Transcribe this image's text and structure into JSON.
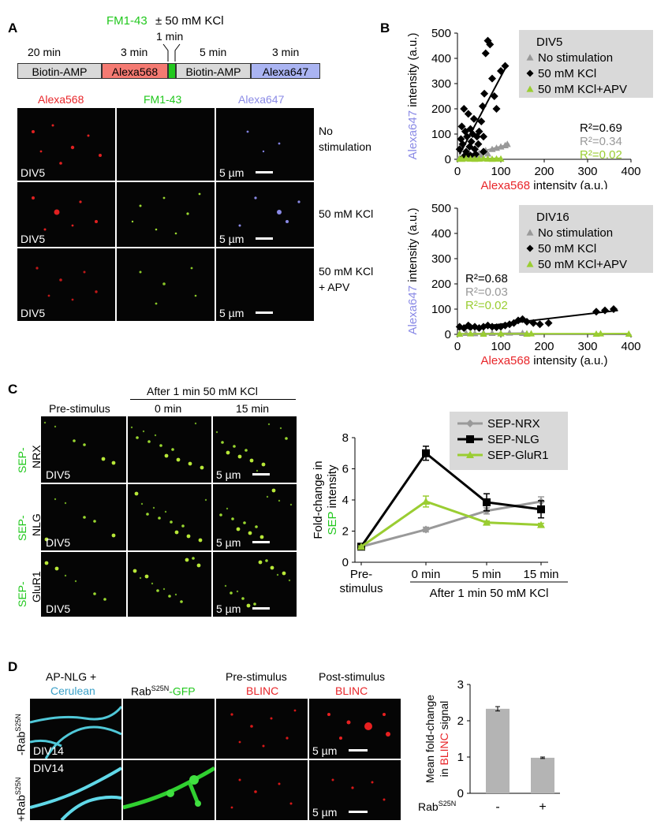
{
  "colors": {
    "red": "#e8262a",
    "green": "#22c81e",
    "blue": "#8a8ae6",
    "cyan": "#3aa0c8",
    "grey": "#999999",
    "black": "#000000",
    "lime": "#9acd32",
    "bar": "#b4b4b4",
    "legendbg": "#d9d9d9"
  },
  "panelA": {
    "letter": "A",
    "fm143": "FM1-43",
    "kcl_label": "± 50 mM KCl",
    "one_min": "1 min",
    "durations": [
      "20 min",
      "3 min",
      "5 min",
      "3 min"
    ],
    "steps": [
      "Biotin-AMP",
      "Alexa568",
      "Biotin-AMP",
      "Alexa647"
    ],
    "col_headers": [
      "Alexa568",
      "FM1-43",
      "Alexa647"
    ],
    "row_labels": [
      [
        "No",
        "stimulation"
      ],
      [
        "50 mM KCl"
      ],
      [
        "50 mM KCl",
        "+ APV"
      ]
    ],
    "div_label": "DIV5",
    "scale_label": "5 µm"
  },
  "panelB": {
    "letter": "B"
  },
  "panelC": {
    "letter": "C",
    "after_header": "After 1 min 50 mM KCl",
    "col_headers": [
      "Pre-stimulus",
      "0 min",
      "15 min"
    ],
    "row_prefix": "SEP-",
    "row_suffixes": [
      "NRX",
      "NLG",
      "GluR1"
    ],
    "div_label": "DIV5",
    "scale_label": "5 µm"
  },
  "panelD": {
    "letter": "D",
    "col1_a": "AP-NLG +",
    "col1_b": "Cerulean",
    "col2_a": "Rab",
    "col2_sup": "S25N",
    "col2_b": "-GFP",
    "col3_a": "Pre-stimulus",
    "col3_b": "BLINC",
    "col4_a": "Post-stimulus",
    "col4_b": "BLINC",
    "row_labels": [
      "-Rab",
      "+Rab"
    ],
    "row_sup": "S25N",
    "div_label": "DIV14",
    "scale_label": "5 µm"
  },
  "chart_data": [
    {
      "id": "B-top",
      "type": "scatter",
      "title": "",
      "xlabel_colored": "Alexa568",
      "xlabel_rest": " intensity (a.u.)",
      "ylabel_colored": "Alexa647",
      "ylabel_rest": " intensity (a.u.)",
      "xlim": [
        0,
        400
      ],
      "ylim": [
        0,
        500
      ],
      "xticks": [
        "0",
        "100",
        "200",
        "300",
        "400"
      ],
      "yticks": [
        "0",
        "100",
        "200",
        "300",
        "400",
        "500"
      ],
      "legend_title": "DIV5",
      "series": [
        {
          "name": "No stimulation",
          "marker": "triangle",
          "color": "grey",
          "points": [
            [
              5,
              5
            ],
            [
              10,
              8
            ],
            [
              15,
              3
            ],
            [
              20,
              12
            ],
            [
              25,
              10
            ],
            [
              30,
              6
            ],
            [
              35,
              15
            ],
            [
              40,
              20
            ],
            [
              45,
              8
            ],
            [
              50,
              25
            ],
            [
              55,
              18
            ],
            [
              60,
              30
            ],
            [
              65,
              35
            ],
            [
              70,
              22
            ],
            [
              80,
              40
            ],
            [
              90,
              45
            ],
            [
              100,
              50
            ],
            [
              110,
              55
            ],
            [
              115,
              60
            ]
          ],
          "fit": [
            [
              0,
              5
            ],
            [
              120,
              60
            ]
          ],
          "r2": "R²=0.34"
        },
        {
          "name": "50 mM KCl",
          "marker": "diamond",
          "color": "black",
          "points": [
            [
              5,
              40
            ],
            [
              8,
              80
            ],
            [
              10,
              130
            ],
            [
              12,
              60
            ],
            [
              15,
              200
            ],
            [
              18,
              110
            ],
            [
              20,
              30
            ],
            [
              22,
              90
            ],
            [
              25,
              180
            ],
            [
              28,
              50
            ],
            [
              30,
              120
            ],
            [
              32,
              70
            ],
            [
              35,
              100
            ],
            [
              38,
              160
            ],
            [
              40,
              40
            ],
            [
              42,
              20
            ],
            [
              45,
              90
            ],
            [
              48,
              60
            ],
            [
              50,
              110
            ],
            [
              55,
              150
            ],
            [
              58,
              210
            ],
            [
              60,
              90
            ],
            [
              62,
              260
            ],
            [
              65,
              420
            ],
            [
              70,
              470
            ],
            [
              75,
              455
            ],
            [
              80,
              320
            ],
            [
              85,
              250
            ],
            [
              90,
              200
            ],
            [
              100,
              350
            ],
            [
              110,
              370
            ],
            [
              60,
              30
            ],
            [
              30,
              15
            ],
            [
              20,
              20
            ],
            [
              15,
              10
            ]
          ],
          "fit": [
            [
              5,
              20
            ],
            [
              110,
              360
            ]
          ],
          "r2": "R²=0.69"
        },
        {
          "name": "50 mM KCl+APV",
          "marker": "triangle",
          "color": "lime",
          "points": [
            [
              5,
              2
            ],
            [
              10,
              1
            ],
            [
              20,
              3
            ],
            [
              30,
              2
            ],
            [
              40,
              1
            ],
            [
              50,
              2
            ],
            [
              60,
              3
            ],
            [
              70,
              2
            ],
            [
              80,
              1
            ],
            [
              90,
              2
            ],
            [
              100,
              2
            ]
          ],
          "fit": [
            [
              0,
              1
            ],
            [
              100,
              4
            ]
          ],
          "r2": "R²=0.02"
        }
      ]
    },
    {
      "id": "B-bottom",
      "type": "scatter",
      "xlabel_colored": "Alexa568",
      "xlabel_rest": " intensity (a.u.)",
      "ylabel_colored": "Alexa647",
      "ylabel_rest": " intensity (a.u.)",
      "xlim": [
        0,
        400
      ],
      "ylim": [
        0,
        500
      ],
      "xticks": [
        "0",
        "100",
        "200",
        "300",
        "400"
      ],
      "yticks": [
        "0",
        "100",
        "200",
        "300",
        "400",
        "500"
      ],
      "legend_title": "DIV16",
      "series": [
        {
          "name": "No stimulation",
          "marker": "triangle",
          "color": "grey",
          "points": [
            [
              5,
              3
            ],
            [
              20,
              5
            ],
            [
              40,
              4
            ],
            [
              60,
              6
            ],
            [
              80,
              5
            ],
            [
              100,
              4
            ],
            [
              120,
              6
            ],
            [
              150,
              5
            ],
            [
              160,
              3
            ]
          ],
          "fit": [
            [
              0,
              2
            ],
            [
              160,
              5
            ]
          ],
          "r2": "R²=0.03"
        },
        {
          "name": "50 mM KCl",
          "marker": "diamond",
          "color": "black",
          "points": [
            [
              5,
              30
            ],
            [
              15,
              25
            ],
            [
              25,
              35
            ],
            [
              30,
              28
            ],
            [
              40,
              30
            ],
            [
              50,
              25
            ],
            [
              60,
              30
            ],
            [
              70,
              35
            ],
            [
              80,
              30
            ],
            [
              90,
              28
            ],
            [
              100,
              30
            ],
            [
              110,
              35
            ],
            [
              120,
              40
            ],
            [
              130,
              45
            ],
            [
              140,
              55
            ],
            [
              150,
              60
            ],
            [
              160,
              50
            ],
            [
              175,
              45
            ],
            [
              190,
              40
            ],
            [
              210,
              45
            ],
            [
              320,
              90
            ],
            [
              340,
              95
            ],
            [
              360,
              100
            ]
          ],
          "fit": [
            [
              0,
              20
            ],
            [
              370,
              95
            ]
          ],
          "r2": "R²=0.68"
        },
        {
          "name": "50 mM KCl+APV",
          "marker": "triangle",
          "color": "lime",
          "points": [
            [
              5,
              2
            ],
            [
              30,
              3
            ],
            [
              60,
              2
            ],
            [
              100,
              3
            ],
            [
              160,
              2
            ],
            [
              170,
              3
            ],
            [
              320,
              2
            ],
            [
              330,
              3
            ],
            [
              395,
              2
            ]
          ],
          "fit": [
            [
              0,
              2
            ],
            [
              395,
              3
            ]
          ],
          "r2": "R²=0.02"
        }
      ]
    },
    {
      "id": "C-line",
      "type": "line",
      "ylabel_a": "Fold-change in",
      "ylabel_colored": "SEP",
      "ylabel_b": " intensity",
      "categories": [
        "Pre-\nstimulus",
        "0 min",
        "5 min",
        "15 min"
      ],
      "category_labels": [
        [
          "Pre-",
          "stimulus"
        ],
        [
          "0 min"
        ],
        [
          "5 min"
        ],
        [
          "15 min"
        ]
      ],
      "bracket_label": "After 1 min 50 mM KCl",
      "ylim": [
        0,
        8
      ],
      "yticks": [
        "0",
        "2",
        "4",
        "6",
        "8"
      ],
      "series": [
        {
          "name": "SEP-NRX",
          "marker": "diamond",
          "color": "grey",
          "values": [
            1,
            2.1,
            3.3,
            3.9
          ],
          "errors": [
            0.05,
            0.15,
            0.2,
            0.3
          ]
        },
        {
          "name": "SEP-NLG",
          "marker": "square",
          "color": "black",
          "values": [
            1,
            7.0,
            3.85,
            3.4
          ],
          "errors": [
            0.05,
            0.45,
            0.55,
            0.55
          ]
        },
        {
          "name": "SEP-GluR1",
          "marker": "triangle",
          "color": "lime",
          "values": [
            1,
            3.9,
            2.55,
            2.4
          ],
          "errors": [
            0.05,
            0.35,
            0.1,
            0.1
          ]
        }
      ]
    },
    {
      "id": "D-bar",
      "type": "bar",
      "ylabel_a": "Mean fold-change",
      "ylabel_b": "in ",
      "ylabel_colored": "BLINC",
      "ylabel_c": " signal",
      "categories": [
        "-",
        "+"
      ],
      "xlabel_a": "Rab",
      "xlabel_sup": "S25N",
      "values": [
        2.33,
        0.98
      ],
      "errors": [
        0.06,
        0.02
      ],
      "ylim": [
        0,
        3
      ],
      "yticks": [
        "0",
        "1",
        "2",
        "3"
      ]
    }
  ]
}
